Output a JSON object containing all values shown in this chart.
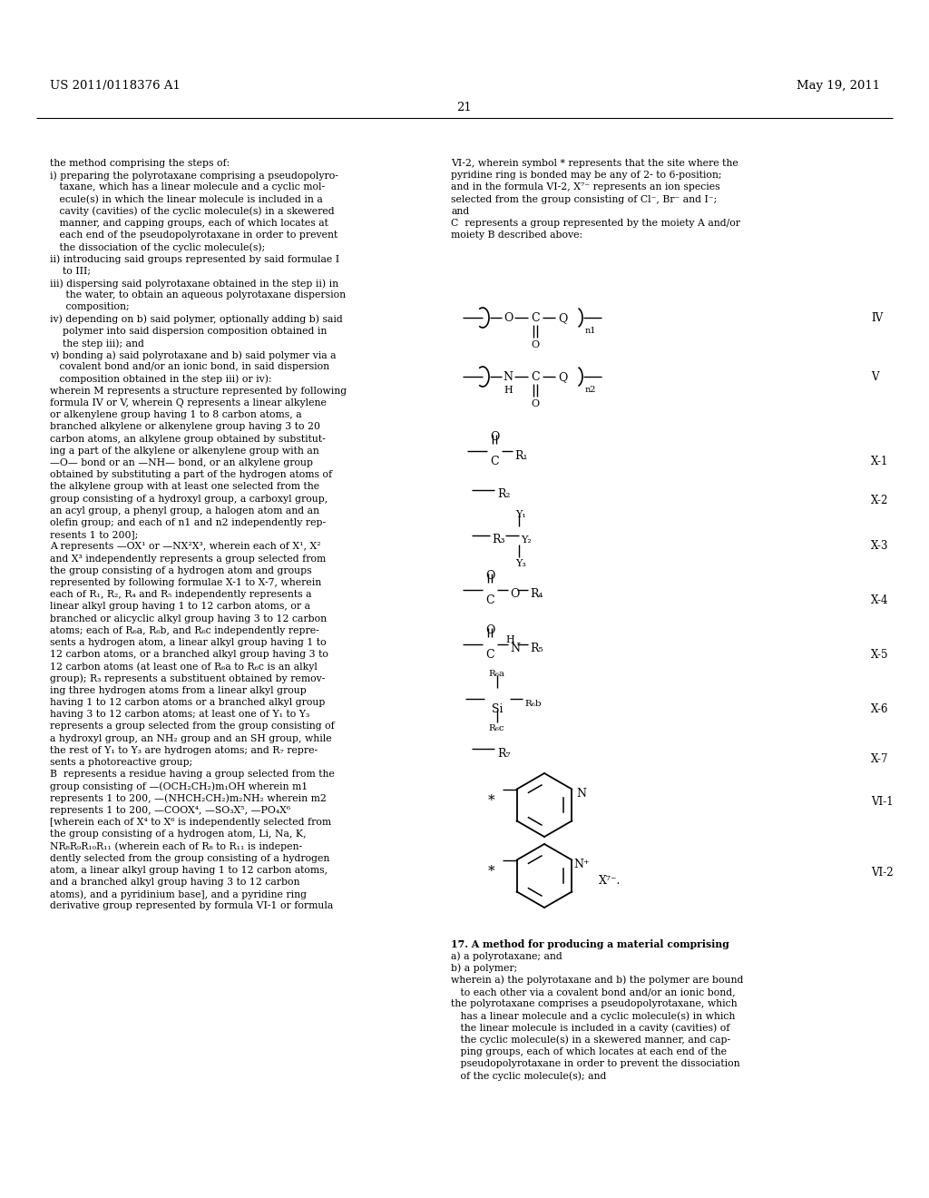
{
  "bg_color": "#ffffff",
  "header_left": "US 2011/0118376 A1",
  "header_right": "May 19, 2011",
  "page_number": "21",
  "left_col_lines": [
    "the method comprising the steps of:",
    "i) preparing the polyrotaxane comprising a pseudopolyro-",
    "   taxane, which has a linear molecule and a cyclic mol-",
    "   ecule(s) in which the linear molecule is included in a",
    "   cavity (cavities) of the cyclic molecule(s) in a skewered",
    "   manner, and capping groups, each of which locates at",
    "   each end of the pseudopolyrotaxane in order to prevent",
    "   the dissociation of the cyclic molecule(s);",
    "ii) introducing said groups represented by said formulae I",
    "    to III;",
    "iii) dispersing said polyrotaxane obtained in the step ii) in",
    "     the water, to obtain an aqueous polyrotaxane dispersion",
    "     composition;",
    "iv) depending on b) said polymer, optionally adding b) said",
    "    polymer into said dispersion composition obtained in",
    "    the step iii); and",
    "v) bonding a) said polyrotaxane and b) said polymer via a",
    "   covalent bond and/or an ionic bond, in said dispersion",
    "   composition obtained in the step iii) or iv):",
    "wherein M represents a structure represented by following",
    "formula IV or V, wherein Q represents a linear alkylene",
    "or alkenylene group having 1 to 8 carbon atoms, a",
    "branched alkylene or alkenylene group having 3 to 20",
    "carbon atoms, an alkylene group obtained by substitut-",
    "ing a part of the alkylene or alkenylene group with an",
    "—O— bond or an —NH— bond, or an alkylene group",
    "obtained by substituting a part of the hydrogen atoms of",
    "the alkylene group with at least one selected from the",
    "group consisting of a hydroxyl group, a carboxyl group,",
    "an acyl group, a phenyl group, a halogen atom and an",
    "olefin group; and each of n1 and n2 independently rep-",
    "resents 1 to 200];",
    "A represents —OX¹ or —NX²X³, wherein each of X¹, X²",
    "and X³ independently represents a group selected from",
    "the group consisting of a hydrogen atom and groups",
    "represented by following formulae X-1 to X-7, wherein",
    "each of R₁, R₂, R₄ and R₅ independently represents a",
    "linear alkyl group having 1 to 12 carbon atoms, or a",
    "branched or alicyclic alkyl group having 3 to 12 carbon",
    "atoms; each of R₆a, R₆b, and R₆c independently repre-",
    "sents a hydrogen atom, a linear alkyl group having 1 to",
    "12 carbon atoms, or a branched alkyl group having 3 to",
    "12 carbon atoms (at least one of R₆a to R₆c is an alkyl",
    "group); R₃ represents a substituent obtained by remov-",
    "ing three hydrogen atoms from a linear alkyl group",
    "having 1 to 12 carbon atoms or a branched alkyl group",
    "having 3 to 12 carbon atoms; at least one of Y₁ to Y₃",
    "represents a group selected from the group consisting of",
    "a hydroxyl group, an NH₂ group and an SH group, while",
    "the rest of Y₁ to Y₃ are hydrogen atoms; and R₇ repre-",
    "sents a photoreactive group;",
    "B  represents a residue having a group selected from the",
    "group consisting of —(OCH₂CH₂)m₁OH wherein m1",
    "represents 1 to 200, —(NHCH₂CH₂)m₂NH₂ wherein m2",
    "represents 1 to 200, —COOX⁴, —SO₃X⁵, —PO₄X⁶",
    "[wherein each of X⁴ to X⁶ is independently selected from",
    "the group consisting of a hydrogen atom, Li, Na, K,",
    "NR₈R₉R₁₀R₁₁ (wherein each of R₈ to R₁₁ is indepen-",
    "dently selected from the group consisting of a hydrogen",
    "atom, a linear alkyl group having 1 to 12 carbon atoms,",
    "and a branched alkyl group having 3 to 12 carbon",
    "atoms), and a pyridinium base], and a pyridine ring",
    "derivative group represented by formula VI-1 or formula"
  ],
  "right_col_top_lines": [
    "VI-2, wherein symbol * represents that the site where the",
    "pyridine ring is bonded may be any of 2- to 6-position;",
    "and in the formula VI-2, X⁷⁻ represents an ion species",
    "selected from the group consisting of Cl⁻, Br⁻ and I⁻;",
    "and",
    "C  represents a group represented by the moiety A and/or",
    "moiety B described above:"
  ],
  "right_col_bottom_lines": [
    "17. A method for producing a material comprising",
    "a) a polyrotaxane; and",
    "b) a polymer;",
    "wherein a) the polyrotaxane and b) the polymer are bound",
    "   to each other via a covalent bond and/or an ionic bond,",
    "the polyrotaxane comprises a pseudopolyrotaxane, which",
    "   has a linear molecule and a cyclic molecule(s) in which",
    "   the linear molecule is included in a cavity (cavities) of",
    "   the cyclic molecule(s) in a skewered manner, and cap-",
    "   ping groups, each of which locates at each end of the",
    "   pseudopolyrotaxane in order to prevent the dissociation",
    "   of the cyclic molecule(s); and"
  ]
}
